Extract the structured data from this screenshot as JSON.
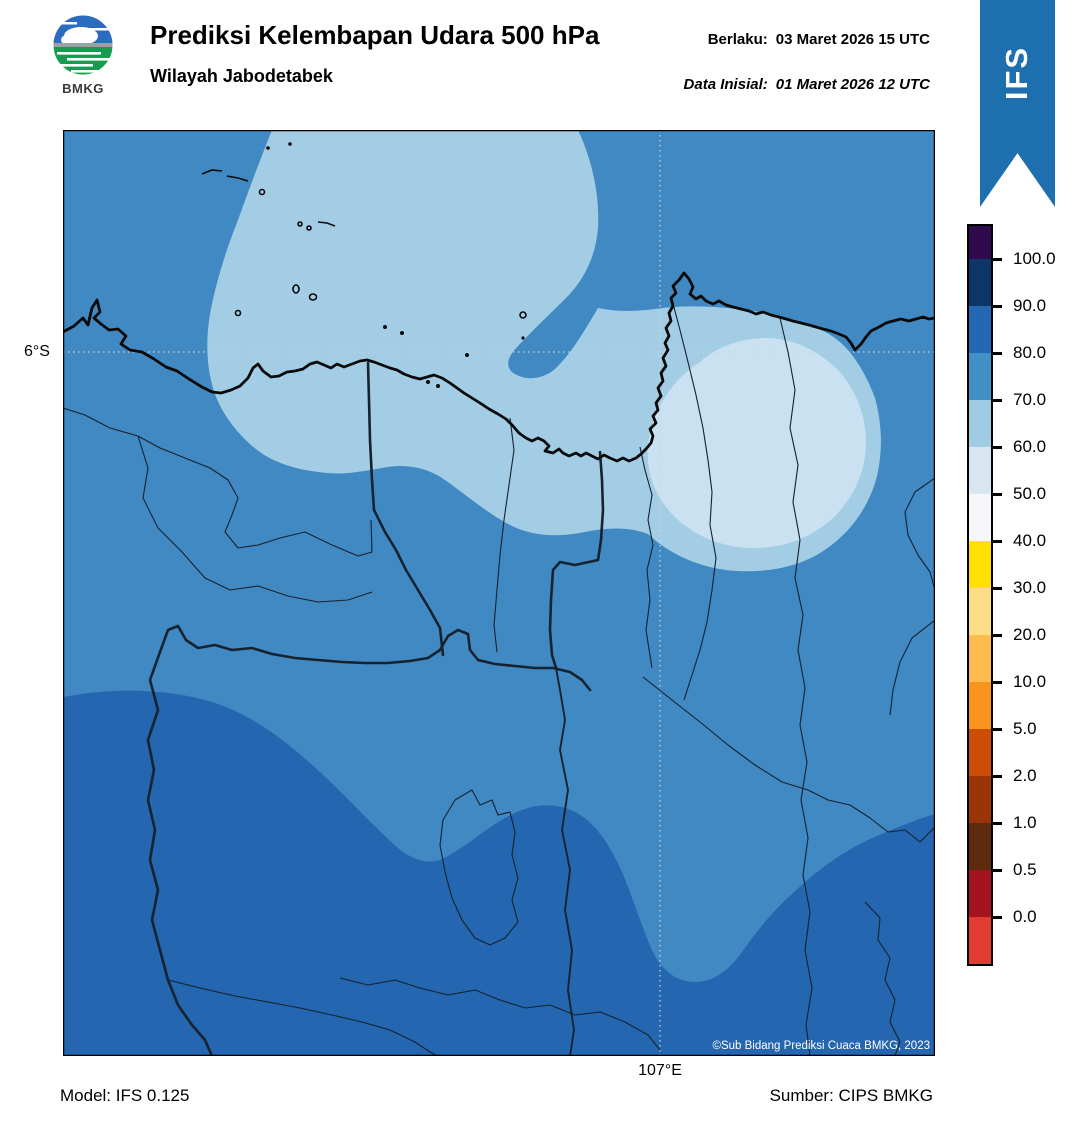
{
  "header": {
    "logo_text": "BMKG",
    "title": "Prediksi Kelembapan Udara 500 hPa",
    "subtitle": "Wilayah Jabodetabek",
    "valid_label": "Berlaku:",
    "valid_value": "03 Maret 2026 15 UTC",
    "initial_label": "Data Inisial:",
    "initial_value": "01 Maret 2026 12 UTC",
    "model_banner": "IFS",
    "banner_color": "#1d6fad"
  },
  "map": {
    "lat_label": "6°S",
    "lon_label": "107°E",
    "copyright": "©Sub Bidang Prediksi Cuaca BMKG, 2023",
    "colors": {
      "base_70_80": "#4089c3",
      "south_80_90": "#2466af",
      "band_60_70": "#a3cde4",
      "lobe_50_60": "#c9e1f1",
      "coastline": "#0a0a0a",
      "admin": "#16222e",
      "gridline": "#cfd4d9"
    }
  },
  "colorbar": {
    "tick_labels": [
      "100.0",
      "90.0",
      "80.0",
      "70.0",
      "60.0",
      "50.0",
      "40.0",
      "30.0",
      "20.0",
      "10.0",
      "5.0",
      "2.0",
      "1.0",
      "0.5",
      "0.0"
    ],
    "segment_colors": [
      "#310a4e",
      "#0e3567",
      "#2467b2",
      "#4291c6",
      "#9fcbe3",
      "#d8e6f2",
      "#f7f7f9",
      "#ffe000",
      "#fbdd86",
      "#fdbd4e",
      "#f8951f",
      "#cc4e06",
      "#9a3507",
      "#5e2a0e",
      "#a31420",
      "#e23c30"
    ]
  },
  "footer": {
    "model": "Model: IFS 0.125",
    "source": "Sumber: CIPS BMKG"
  }
}
